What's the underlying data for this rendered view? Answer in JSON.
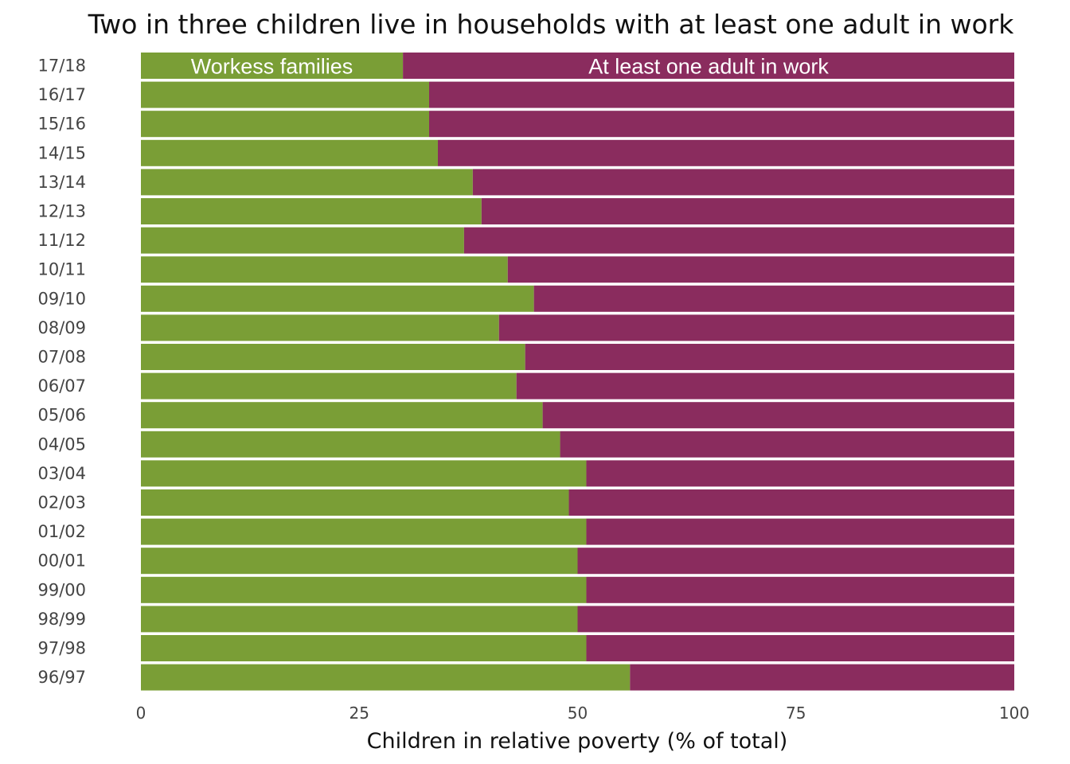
{
  "chart_data": {
    "type": "bar",
    "orientation": "horizontal",
    "stacked": true,
    "title": "Two in three children live in households with at least one adult in work",
    "xlabel": "Children in relative poverty (% of total)",
    "ylabel": "",
    "xlim": [
      0,
      100
    ],
    "xticks": [
      0,
      25,
      50,
      75,
      100
    ],
    "grid": false,
    "legend": "none",
    "categories": [
      "17/18",
      "16/17",
      "15/16",
      "14/15",
      "13/14",
      "12/13",
      "11/12",
      "10/11",
      "09/10",
      "08/09",
      "07/08",
      "06/07",
      "05/06",
      "04/05",
      "03/04",
      "02/03",
      "01/02",
      "00/01",
      "99/00",
      "98/99",
      "97/98",
      "96/97"
    ],
    "series": [
      {
        "name": "Workess families",
        "color": "#7a9e36",
        "values": [
          30,
          33,
          33,
          34,
          38,
          39,
          37,
          42,
          45,
          41,
          44,
          43,
          46,
          48,
          51,
          49,
          51,
          50,
          51,
          50,
          51,
          56
        ]
      },
      {
        "name": "At least one adult in work",
        "color": "#8a2c5e",
        "values": [
          70,
          67,
          67,
          66,
          62,
          61,
          63,
          58,
          55,
          59,
          56,
          57,
          54,
          52,
          49,
          51,
          49,
          50,
          49,
          50,
          49,
          44
        ]
      }
    ]
  }
}
